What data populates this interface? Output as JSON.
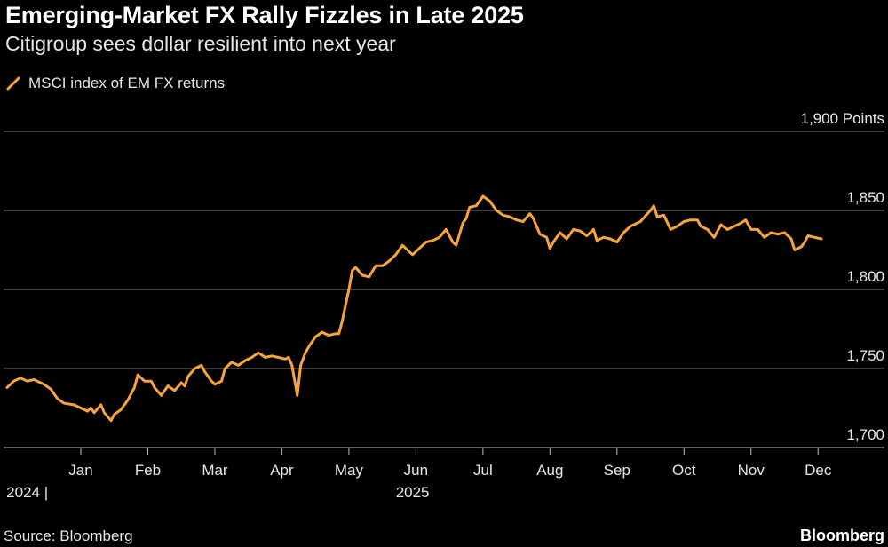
{
  "header": {
    "title": "Emerging-Market FX Rally Fizzles in Late 2025",
    "subtitle": "Citigroup sees dollar resilient into next year"
  },
  "footer": {
    "source": "Source: Bloomberg",
    "brand": "Bloomberg"
  },
  "colors": {
    "line": "#f7a43b",
    "grid": "#7a7a7a",
    "axis": "#bdbdbd",
    "background": "#000000"
  },
  "chart_data": {
    "type": "line",
    "title": "Emerging-Market FX Rally Fizzles in Late 2025",
    "subtitle": "Citigroup sees dollar resilient into next year",
    "legend": [
      "MSCI index of EM FX returns"
    ],
    "ylabel": "Points",
    "ylim": [
      1700,
      1900
    ],
    "y_ticks": [
      1700,
      1750,
      1800,
      1850,
      1900
    ],
    "y_tick_labels": [
      "1,700",
      "1,750",
      "1,800",
      "1,850",
      "1,900 Points"
    ],
    "x_ticks": [
      {
        "label": "Jan",
        "t": 1.0
      },
      {
        "label": "Feb",
        "t": 2.0
      },
      {
        "label": "Mar",
        "t": 3.0
      },
      {
        "label": "Apr",
        "t": 4.0
      },
      {
        "label": "May",
        "t": 5.0
      },
      {
        "label": "Jun",
        "t": 6.0
      },
      {
        "label": "Jul",
        "t": 7.0
      },
      {
        "label": "Aug",
        "t": 8.0
      },
      {
        "label": "Sep",
        "t": 9.0
      },
      {
        "label": "Oct",
        "t": 10.0
      },
      {
        "label": "Nov",
        "t": 11.0
      },
      {
        "label": "Dec",
        "t": 12.0
      }
    ],
    "year_labels": [
      {
        "label": "2024 |",
        "t": 0.2
      },
      {
        "label": "2025",
        "t": 5.95
      }
    ],
    "xlim": [
      -0.1,
      12.05
    ],
    "grid": true,
    "series": [
      {
        "name": "MSCI index of EM FX returns",
        "points": [
          [
            -0.1,
            1738
          ],
          [
            0.0,
            1742
          ],
          [
            0.1,
            1744
          ],
          [
            0.2,
            1742
          ],
          [
            0.3,
            1743
          ],
          [
            0.45,
            1740
          ],
          [
            0.55,
            1737
          ],
          [
            0.65,
            1731
          ],
          [
            0.75,
            1728
          ],
          [
            0.9,
            1727
          ],
          [
            1.0,
            1725
          ],
          [
            1.1,
            1723
          ],
          [
            1.15,
            1725
          ],
          [
            1.2,
            1722
          ],
          [
            1.3,
            1727
          ],
          [
            1.35,
            1722
          ],
          [
            1.45,
            1717
          ],
          [
            1.5,
            1721
          ],
          [
            1.6,
            1724
          ],
          [
            1.7,
            1730
          ],
          [
            1.8,
            1738
          ],
          [
            1.85,
            1746
          ],
          [
            1.95,
            1742
          ],
          [
            2.05,
            1742
          ],
          [
            2.1,
            1738
          ],
          [
            2.2,
            1733
          ],
          [
            2.3,
            1739
          ],
          [
            2.4,
            1736
          ],
          [
            2.5,
            1741
          ],
          [
            2.55,
            1739
          ],
          [
            2.6,
            1745
          ],
          [
            2.7,
            1750
          ],
          [
            2.8,
            1752
          ],
          [
            2.85,
            1748
          ],
          [
            2.95,
            1742
          ],
          [
            3.0,
            1740
          ],
          [
            3.05,
            1741
          ],
          [
            3.1,
            1742
          ],
          [
            3.15,
            1750
          ],
          [
            3.25,
            1754
          ],
          [
            3.35,
            1752
          ],
          [
            3.45,
            1755
          ],
          [
            3.55,
            1757
          ],
          [
            3.65,
            1760
          ],
          [
            3.75,
            1757
          ],
          [
            3.85,
            1758
          ],
          [
            3.95,
            1757
          ],
          [
            4.05,
            1756
          ],
          [
            4.1,
            1757
          ],
          [
            4.15,
            1752
          ],
          [
            4.2,
            1740
          ],
          [
            4.23,
            1733
          ],
          [
            4.28,
            1752
          ],
          [
            4.35,
            1760
          ],
          [
            4.42,
            1765
          ],
          [
            4.5,
            1770
          ],
          [
            4.6,
            1773
          ],
          [
            4.7,
            1771
          ],
          [
            4.8,
            1772
          ],
          [
            4.85,
            1772
          ],
          [
            4.9,
            1780
          ],
          [
            4.95,
            1790
          ],
          [
            5.0,
            1800
          ],
          [
            5.05,
            1812
          ],
          [
            5.1,
            1814
          ],
          [
            5.2,
            1809
          ],
          [
            5.3,
            1808
          ],
          [
            5.4,
            1815
          ],
          [
            5.5,
            1815
          ],
          [
            5.6,
            1818
          ],
          [
            5.7,
            1822
          ],
          [
            5.8,
            1828
          ],
          [
            5.9,
            1824
          ],
          [
            5.95,
            1822
          ],
          [
            6.05,
            1826
          ],
          [
            6.15,
            1830
          ],
          [
            6.25,
            1831
          ],
          [
            6.35,
            1833
          ],
          [
            6.45,
            1838
          ],
          [
            6.5,
            1834
          ],
          [
            6.55,
            1830
          ],
          [
            6.6,
            1828
          ],
          [
            6.7,
            1842
          ],
          [
            6.75,
            1845
          ],
          [
            6.8,
            1852
          ],
          [
            6.9,
            1853
          ],
          [
            7.0,
            1859
          ],
          [
            7.1,
            1856
          ],
          [
            7.2,
            1850
          ],
          [
            7.3,
            1847
          ],
          [
            7.4,
            1846
          ],
          [
            7.5,
            1844
          ],
          [
            7.6,
            1843
          ],
          [
            7.7,
            1848
          ],
          [
            7.75,
            1845
          ],
          [
            7.85,
            1835
          ],
          [
            7.95,
            1833
          ],
          [
            8.0,
            1826
          ],
          [
            8.05,
            1830
          ],
          [
            8.15,
            1836
          ],
          [
            8.25,
            1832
          ],
          [
            8.35,
            1838
          ],
          [
            8.45,
            1837
          ],
          [
            8.55,
            1834
          ],
          [
            8.65,
            1838
          ],
          [
            8.7,
            1831
          ],
          [
            8.8,
            1833
          ],
          [
            8.9,
            1832
          ],
          [
            9.0,
            1830
          ],
          [
            9.1,
            1836
          ],
          [
            9.2,
            1840
          ],
          [
            9.35,
            1843
          ],
          [
            9.5,
            1850
          ],
          [
            9.55,
            1853
          ],
          [
            9.6,
            1846
          ],
          [
            9.7,
            1847
          ],
          [
            9.8,
            1838
          ],
          [
            9.9,
            1840
          ],
          [
            10.0,
            1843
          ],
          [
            10.1,
            1844
          ],
          [
            10.2,
            1844
          ],
          [
            10.25,
            1840
          ],
          [
            10.35,
            1838
          ],
          [
            10.45,
            1833
          ],
          [
            10.55,
            1841
          ],
          [
            10.65,
            1838
          ],
          [
            10.75,
            1840
          ],
          [
            10.85,
            1842
          ],
          [
            10.92,
            1844
          ],
          [
            11.0,
            1838
          ],
          [
            11.1,
            1838
          ],
          [
            11.2,
            1833
          ],
          [
            11.3,
            1836
          ],
          [
            11.4,
            1835
          ],
          [
            11.5,
            1836
          ],
          [
            11.6,
            1832
          ],
          [
            11.65,
            1825
          ],
          [
            11.75,
            1827
          ],
          [
            11.8,
            1830
          ],
          [
            11.85,
            1834
          ],
          [
            11.95,
            1833
          ],
          [
            12.05,
            1832
          ]
        ]
      }
    ]
  }
}
